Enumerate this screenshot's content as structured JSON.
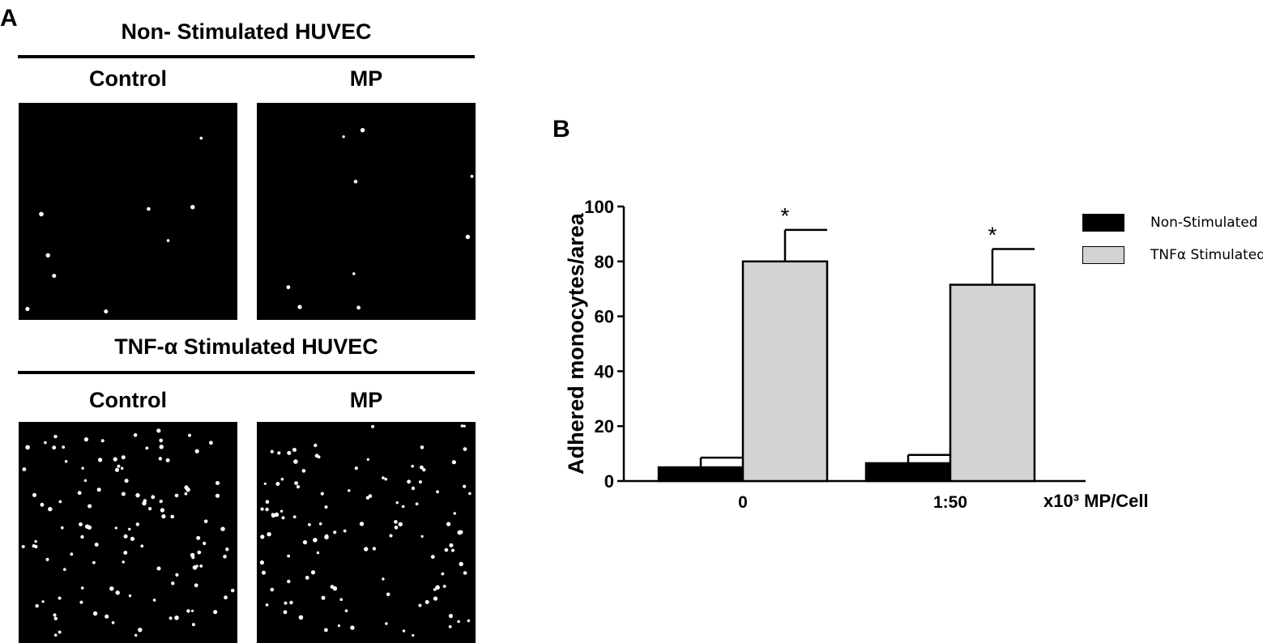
{
  "panel_a": {
    "label": "A",
    "sections": [
      {
        "title": "Non- Stimulated HUVEC",
        "images": [
          {
            "label": "Control",
            "cell_density": "low"
          },
          {
            "label": "MP",
            "cell_density": "low"
          }
        ]
      },
      {
        "title": "TNF-α Stimulated HUVEC",
        "images": [
          {
            "label": "Control",
            "cell_density": "high"
          },
          {
            "label": "MP",
            "cell_density": "high"
          }
        ]
      }
    ]
  },
  "panel_b": {
    "label": "B"
  },
  "chart_data": {
    "type": "bar",
    "categories": [
      "0",
      "1:50"
    ],
    "series": [
      {
        "name": "Non-Stimulated",
        "color": "#000000",
        "values": [
          5,
          6.5
        ],
        "errors": [
          3.5,
          3
        ]
      },
      {
        "name": "TNFα Stimulated",
        "color": "#d3d3d3",
        "values": [
          80,
          71.5
        ],
        "errors": [
          11.5,
          13
        ]
      }
    ],
    "significance": [
      [
        false,
        false
      ],
      [
        true,
        true
      ]
    ],
    "significance_marker": "*",
    "xlabel": "x10³ MP/Cell",
    "ylabel": "Adhered monocytes/area",
    "ylim": [
      0,
      100
    ],
    "yticks": [
      0,
      20,
      40,
      60,
      80,
      100
    ],
    "grid": false,
    "legend_position": "right"
  }
}
